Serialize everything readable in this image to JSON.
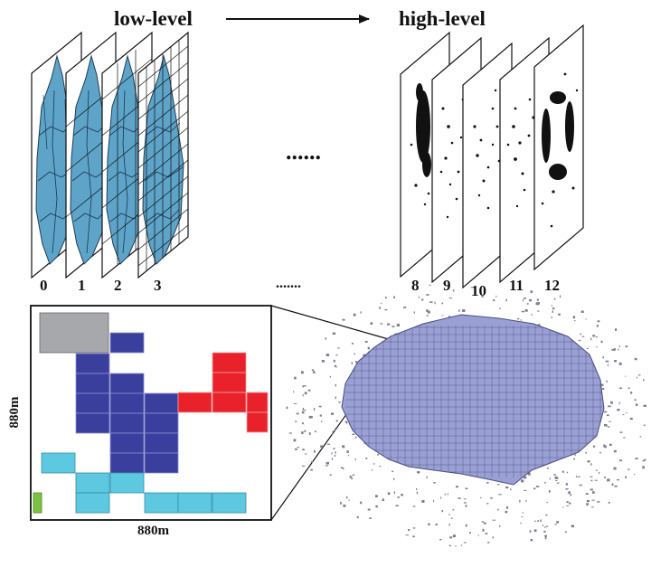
{
  "titles": {
    "low": "low-level",
    "high": "high-level"
  },
  "ellipsis_upper": "......",
  "ellipsis_lower": ".......",
  "low_levels": [
    "0",
    "1",
    "2",
    "3"
  ],
  "high_levels": [
    "8",
    "9",
    "10",
    "11",
    "12"
  ],
  "dimensions": {
    "width_label": "880m",
    "height_label": "880m"
  },
  "colors": {
    "terrain": "#5ea4c9",
    "gray_block": "#a7a8ac",
    "navy_block": "#3a3f9e",
    "red_block": "#e8212a",
    "cyan_block": "#5ec8e0",
    "green_block": "#7cc242",
    "map_fill": "#9a9fd4",
    "scatter": "#7b7f90"
  }
}
